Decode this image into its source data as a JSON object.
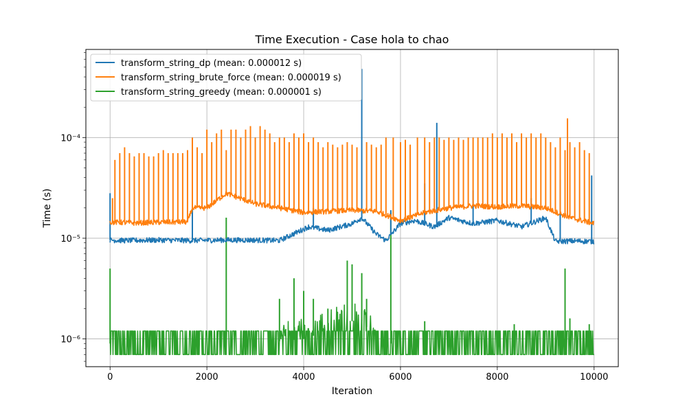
{
  "chart_data": {
    "type": "line",
    "title": "Time Execution - Case hola to chao",
    "xlabel": "Iteration",
    "ylabel": "Time (s)",
    "xlim": [
      -500,
      10500
    ],
    "ylim": [
      5.3e-07,
      0.00075
    ],
    "yscale": "log",
    "grid": true,
    "legend_loc": "upper left",
    "x_ticks": [
      0,
      2000,
      4000,
      6000,
      8000,
      10000
    ],
    "x_tick_labels": [
      "0",
      "2000",
      "4000",
      "6000",
      "8000",
      "10000"
    ],
    "y_major_ticks": [
      1e-06,
      1e-05,
      0.0001
    ],
    "y_tick_labels": [
      "10⁻⁶",
      "10⁻⁵",
      "10⁻⁴"
    ],
    "series": [
      {
        "name": "transform_string_dp (mean: 0.000012 s)",
        "color": "#1f77b4",
        "x": [
          0,
          300,
          1000,
          1700,
          2300,
          2900,
          3500,
          4100,
          4500,
          5000,
          5200,
          5500,
          5700,
          6000,
          6300,
          6700,
          7000,
          7500,
          8000,
          8500,
          9000,
          9200,
          9600,
          10000
        ],
        "y": [
          9.6e-06,
          9.5e-06,
          9.6e-06,
          9.5e-06,
          9.6e-06,
          9.6e-06,
          9.5e-06,
          1.3e-05,
          1.2e-05,
          1.4e-05,
          1.6e-05,
          1.1e-05,
          9.5e-06,
          1.4e-05,
          1.5e-05,
          1.3e-05,
          1.6e-05,
          1.4e-05,
          1.5e-05,
          1.3e-05,
          1.6e-05,
          9.3e-06,
          9.4e-06,
          9.3e-06
        ],
        "spikes": [
          [
            0,
            2.8e-05
          ],
          [
            1700,
            2e-05
          ],
          [
            4200,
            2e-05
          ],
          [
            5200,
            0.00048
          ],
          [
            5800,
            1.9e-05
          ],
          [
            6500,
            3.5e-05
          ],
          [
            6750,
            0.00014
          ],
          [
            7500,
            3e-05
          ],
          [
            8700,
            2.5e-05
          ],
          [
            9300,
            3.8e-05
          ],
          [
            9950,
            4.2e-05
          ]
        ]
      },
      {
        "name": "transform_string_brute_force (mean: 0.000019 s)",
        "color": "#ff7f0e",
        "x": [
          0,
          500,
          1000,
          1600,
          1700,
          2000,
          2400,
          3000,
          3500,
          4000,
          4500,
          5000,
          5500,
          6000,
          6500,
          7000,
          7500,
          8000,
          8500,
          9000,
          9500,
          10000
        ],
        "y": [
          1.45e-05,
          1.42e-05,
          1.44e-05,
          1.45e-05,
          2e-05,
          2e-05,
          2.8e-05,
          2.2e-05,
          2e-05,
          1.8e-05,
          1.85e-05,
          1.9e-05,
          1.85e-05,
          1.5e-05,
          1.8e-05,
          2e-05,
          2.1e-05,
          2.05e-05,
          2.1e-05,
          2e-05,
          1.6e-05,
          1.4e-05
        ],
        "spikes": [
          [
            50,
            2.5e-05
          ],
          [
            100,
            6e-05
          ],
          [
            200,
            7e-05
          ],
          [
            300,
            8e-05
          ],
          [
            400,
            7e-05
          ],
          [
            500,
            6.5e-05
          ],
          [
            600,
            7e-05
          ],
          [
            700,
            7e-05
          ],
          [
            800,
            6.5e-05
          ],
          [
            900,
            6.5e-05
          ],
          [
            1000,
            7e-05
          ],
          [
            1100,
            7.5e-05
          ],
          [
            1200,
            7e-05
          ],
          [
            1300,
            7e-05
          ],
          [
            1400,
            7e-05
          ],
          [
            1500,
            7e-05
          ],
          [
            1600,
            7.5e-05
          ],
          [
            1700,
            0.0001
          ],
          [
            1800,
            8e-05
          ],
          [
            1900,
            7e-05
          ],
          [
            2000,
            0.00012
          ],
          [
            2100,
            9e-05
          ],
          [
            2200,
            0.00011
          ],
          [
            2300,
            0.00012
          ],
          [
            2400,
            7.5e-05
          ],
          [
            2500,
            0.00012
          ],
          [
            2600,
            0.00012
          ],
          [
            2700,
            0.0001
          ],
          [
            2800,
            0.00012
          ],
          [
            2900,
            0.00013
          ],
          [
            3000,
            0.0001
          ],
          [
            3100,
            0.00013
          ],
          [
            3200,
            0.00012
          ],
          [
            3300,
            0.00011
          ],
          [
            3400,
            9e-05
          ],
          [
            3500,
            0.0001
          ],
          [
            3600,
            0.0001
          ],
          [
            3700,
            9e-05
          ],
          [
            3800,
            0.00011
          ],
          [
            3900,
            0.0001
          ],
          [
            4000,
            0.00011
          ],
          [
            4100,
            9e-05
          ],
          [
            4200,
            0.0001
          ],
          [
            4300,
            9e-05
          ],
          [
            4400,
            8e-05
          ],
          [
            4500,
            9e-05
          ],
          [
            4600,
            8.5e-05
          ],
          [
            4700,
            8e-05
          ],
          [
            4800,
            8.5e-05
          ],
          [
            4900,
            9e-05
          ],
          [
            5000,
            8.5e-05
          ],
          [
            5100,
            8e-05
          ],
          [
            5300,
            9e-05
          ],
          [
            5400,
            8.5e-05
          ],
          [
            5500,
            8e-05
          ],
          [
            5600,
            8.5e-05
          ],
          [
            5700,
            0.0001
          ],
          [
            5850,
            0.0001
          ],
          [
            6000,
            9e-05
          ],
          [
            6100,
            9.5e-05
          ],
          [
            6200,
            8.5e-05
          ],
          [
            6350,
            0.0001
          ],
          [
            6500,
            0.0001
          ],
          [
            6600,
            9e-05
          ],
          [
            6700,
            0.0001
          ],
          [
            6800,
            0.0001
          ],
          [
            6900,
            9.5e-05
          ],
          [
            7000,
            0.0001
          ],
          [
            7100,
            9.5e-05
          ],
          [
            7200,
            0.0001
          ],
          [
            7300,
            9.5e-05
          ],
          [
            7400,
            0.0001
          ],
          [
            7500,
            0.0001
          ],
          [
            7600,
            0.0001
          ],
          [
            7700,
            0.0001
          ],
          [
            7800,
            0.0001
          ],
          [
            7900,
            0.00011
          ],
          [
            8000,
            0.0001
          ],
          [
            8100,
            0.00011
          ],
          [
            8200,
            0.0001
          ],
          [
            8300,
            0.00011
          ],
          [
            8400,
            9e-05
          ],
          [
            8500,
            0.00011
          ],
          [
            8600,
            0.0001
          ],
          [
            8700,
            0.00011
          ],
          [
            8800,
            0.0001
          ],
          [
            8900,
            0.00011
          ],
          [
            9000,
            0.0001
          ],
          [
            9100,
            9e-05
          ],
          [
            9200,
            8e-05
          ],
          [
            9300,
            0.0001
          ],
          [
            9400,
            7.5e-05
          ],
          [
            9450,
            0.000155
          ],
          [
            9500,
            9e-05
          ],
          [
            9600,
            8e-05
          ],
          [
            9700,
            9e-05
          ],
          [
            9800,
            7.5e-05
          ],
          [
            9900,
            7e-05
          ]
        ]
      },
      {
        "name": "transform_string_greedy (mean: 0.000001 s)",
        "color": "#2ca02c",
        "x": [
          0,
          2000,
          3500,
          4000,
          4500,
          5000,
          5200,
          5500,
          5800,
          6000,
          8000,
          10000
        ],
        "y": [
          9e-07,
          9e-07,
          9.5e-07,
          1e-06,
          1.2e-06,
          1.5e-06,
          1.5e-06,
          1e-06,
          9e-07,
          9e-07,
          9e-07,
          9e-07
        ],
        "band_low": 7e-07,
        "band_high": 1.2e-06,
        "spikes": [
          [
            0,
            5e-06
          ],
          [
            2400,
            1.6e-05
          ],
          [
            3500,
            2.5e-06
          ],
          [
            3800,
            4e-06
          ],
          [
            4000,
            3e-06
          ],
          [
            4200,
            2.5e-06
          ],
          [
            4500,
            2e-06
          ],
          [
            4900,
            6e-06
          ],
          [
            5000,
            5.5e-06
          ],
          [
            5200,
            4.5e-06
          ],
          [
            5300,
            2.5e-06
          ],
          [
            5800,
            1.8e-05
          ],
          [
            6500,
            1.5e-06
          ],
          [
            8350,
            1.4e-06
          ],
          [
            9400,
            5e-06
          ],
          [
            9500,
            1.6e-06
          ],
          [
            9900,
            1.4e-06
          ]
        ]
      }
    ]
  }
}
